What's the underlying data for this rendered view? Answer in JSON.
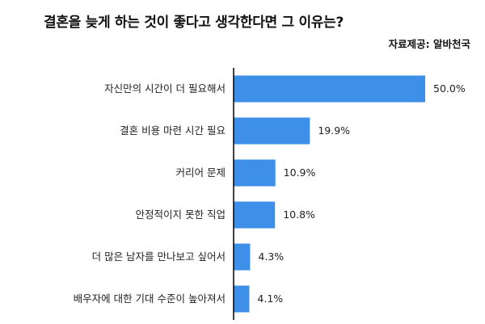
{
  "chart_data": {
    "type": "bar",
    "orientation": "horizontal",
    "title": "결혼을 늦게 하는 것이 좋다고 생각한다면 그 이유는?",
    "source": "자료제공: 알바천국",
    "categories": [
      "자신만의 시간이 더 필요해서",
      "결혼 비용 마련 시간 필요",
      "커리어 문제",
      "안정적이지 못한 직업",
      "더 많은 남자를 만나보고 싶어서",
      "배우자에 대한 기대 수준이 높아져서"
    ],
    "values": [
      50.0,
      19.9,
      10.9,
      10.8,
      4.3,
      4.1
    ],
    "value_labels": [
      "50.0%",
      "19.9%",
      "10.9%",
      "10.8%",
      "4.3%",
      "4.1%"
    ],
    "xlim": [
      0,
      50
    ],
    "grid": false,
    "bar_color": "#3d8fe8"
  }
}
